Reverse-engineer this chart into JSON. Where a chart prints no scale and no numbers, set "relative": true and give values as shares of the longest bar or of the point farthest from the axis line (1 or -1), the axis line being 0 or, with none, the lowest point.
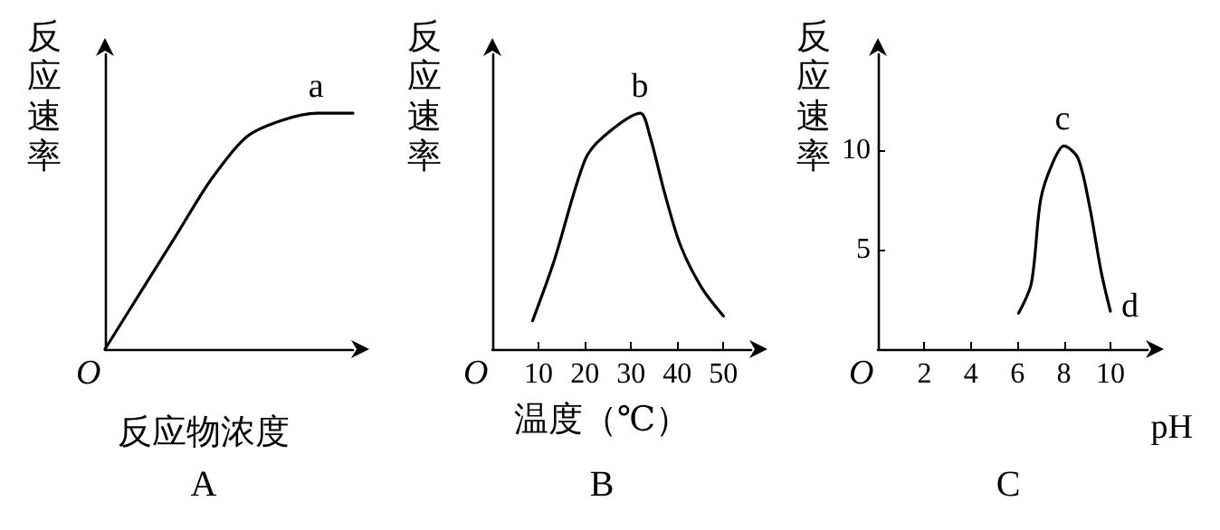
{
  "chart_data": [
    {
      "type": "line",
      "title": "A",
      "xlabel": "反应物浓度",
      "ylabel": "反应速率",
      "relative": true,
      "categories": [
        null,
        null,
        null,
        null,
        null,
        null,
        null,
        null
      ],
      "series": [
        {
          "color": "#000000",
          "values": [
            0,
            0.24,
            0.48,
            0.72,
            0.9,
            0.97,
            1,
            1
          ]
        }
      ],
      "annotations": [
        "O",
        {
          "text": "a",
          "y": 1
        }
      ]
    },
    {
      "type": "line",
      "title": "B",
      "xlabel": "温度（℃）",
      "ylabel": "反应速率",
      "relative": true,
      "xlim": [
        0,
        56
      ],
      "xticks": [
        10,
        20,
        30,
        40,
        50
      ],
      "series": [
        {
          "color": "#000000",
          "x": [
            8.7,
            13.3,
            20,
            24,
            32,
            34,
            37.3,
            40.7,
            45.3,
            50
          ],
          "values": [
            0.12,
            0.37,
            0.8,
            0.9,
            1,
            0.91,
            0.66,
            0.44,
            0.26,
            0.14
          ]
        }
      ],
      "annotations": [
        "O",
        {
          "text": "b",
          "x": 32,
          "y": 1
        }
      ]
    },
    {
      "type": "line",
      "title": "C",
      "xlabel": "pH",
      "ylabel": "反应速率",
      "xlim": [
        0,
        11.6
      ],
      "xticks": [
        2,
        4,
        6,
        8,
        10
      ],
      "ylim": [
        0,
        14.8
      ],
      "yticks": [
        5,
        10
      ],
      "series": [
        {
          "color": "#000000",
          "x": [
            6.05,
            6.6,
            7,
            7.5,
            8,
            8.6,
            9.1,
            9.6,
            10
          ],
          "values": [
            1.8,
            3.3,
            7.5,
            9.3,
            10.2,
            9.6,
            7.2,
            3.9,
            1.9
          ]
        }
      ],
      "annotations": [
        "O",
        {
          "text": "c",
          "x": 8,
          "y": 10.2
        },
        {
          "text": "d",
          "x": 10,
          "y": 1.9
        }
      ]
    }
  ]
}
